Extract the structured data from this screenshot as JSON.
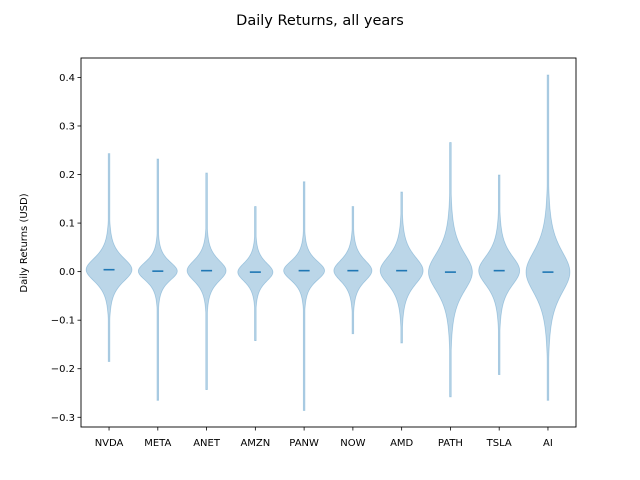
{
  "chart_data": {
    "type": "violin",
    "title": "Daily Returns, all years",
    "xlabel": "",
    "ylabel": "Daily Returns (USD)",
    "ylim": [
      -0.32,
      0.44
    ],
    "yticks": [
      -0.3,
      -0.2,
      -0.1,
      0.0,
      0.1,
      0.2,
      0.3,
      0.4
    ],
    "ytick_labels": [
      "−0.3",
      "−0.2",
      "−0.1",
      "0.0",
      "0.1",
      "0.2",
      "0.3",
      "0.4"
    ],
    "grid": false,
    "color": "#1f77b4",
    "categories": [
      "NVDA",
      "META",
      "ANET",
      "AMZN",
      "PANW",
      "NOW",
      "AMD",
      "PATH",
      "TSLA",
      "AI"
    ],
    "series": [
      {
        "median": 0.004,
        "min": -0.185,
        "max": 0.243,
        "spread": 0.028,
        "halfwidth": 0.47
      },
      {
        "median": 0.001,
        "min": -0.265,
        "max": 0.232,
        "spread": 0.022,
        "halfwidth": 0.4
      },
      {
        "median": 0.002,
        "min": -0.243,
        "max": 0.203,
        "spread": 0.025,
        "halfwidth": 0.4
      },
      {
        "median": -0.001,
        "min": -0.142,
        "max": 0.134,
        "spread": 0.022,
        "halfwidth": 0.36
      },
      {
        "median": 0.002,
        "min": -0.286,
        "max": 0.185,
        "spread": 0.023,
        "halfwidth": 0.42
      },
      {
        "median": 0.002,
        "min": -0.128,
        "max": 0.134,
        "spread": 0.025,
        "halfwidth": 0.39
      },
      {
        "median": 0.002,
        "min": -0.147,
        "max": 0.164,
        "spread": 0.033,
        "halfwidth": 0.44
      },
      {
        "median": -0.001,
        "min": -0.258,
        "max": 0.266,
        "spread": 0.045,
        "halfwidth": 0.45
      },
      {
        "median": 0.002,
        "min": -0.212,
        "max": 0.199,
        "spread": 0.035,
        "halfwidth": 0.42
      },
      {
        "median": -0.001,
        "min": -0.265,
        "max": 0.405,
        "spread": 0.05,
        "halfwidth": 0.45
      }
    ]
  }
}
